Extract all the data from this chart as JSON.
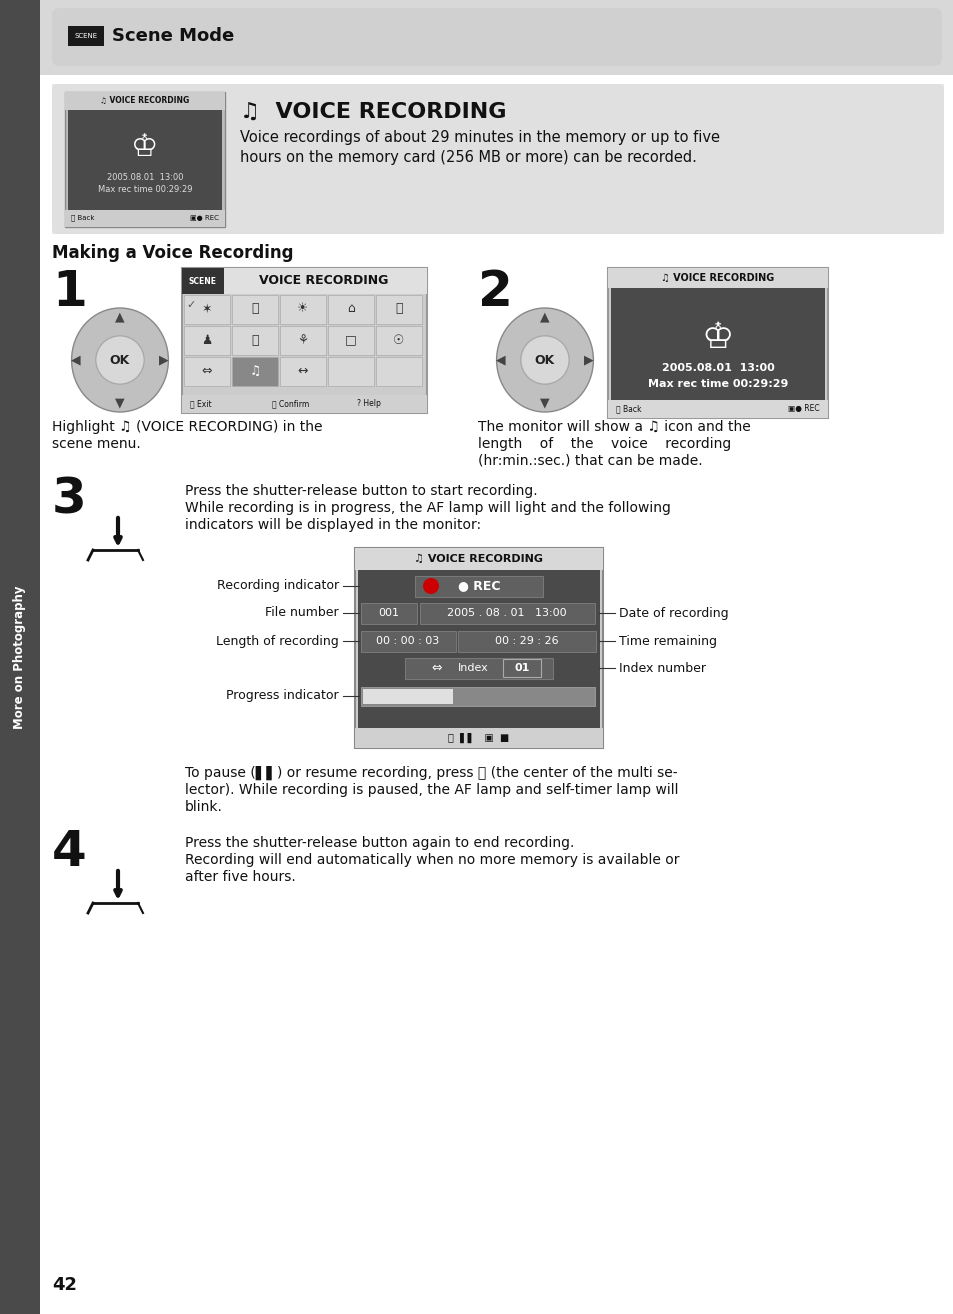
{
  "page_bg": "#ffffff",
  "sidebar_bg": "#4a4a4a",
  "header_bg": "#d8d8d8",
  "intro_box_bg": "#e8e8e8",
  "screen_dark_bg": "#4a4a4a",
  "screen_mid_bg": "#6a6a6a",
  "title": "Scene Mode",
  "section_title": "Making a Voice Recording",
  "intro_text1": "Voice recordings of about 29 minutes in the memory or up to five",
  "intro_text2": "hours on the memory card (256 MB or more) can be recorded.",
  "step3_text1": "Press the shutter-release button to start recording.",
  "step3_text2": "While recording is in progress, the AF lamp will light and the following",
  "step3_text3": "indicators will be displayed in the monitor:",
  "step3_pause1": "To pause (▌▌) or resume recording, press ⓞ (the center of the multi se-",
  "step3_pause2": "lector). While recording is paused, the AF lamp and self-timer lamp will",
  "step3_pause3": "blink.",
  "step4_text1": "Press the shutter-release button again to end recording.",
  "step4_text2": "Recording will end automatically when no more memory is available or",
  "step4_text3": "after five hours.",
  "labels_left": [
    "Recording indicator",
    "File number",
    "Length of recording",
    "Progress indicator"
  ],
  "labels_right": [
    "Date of recording",
    "Time remaining",
    "Index number"
  ],
  "page_number": "42",
  "sidebar_text": "More on Photography"
}
